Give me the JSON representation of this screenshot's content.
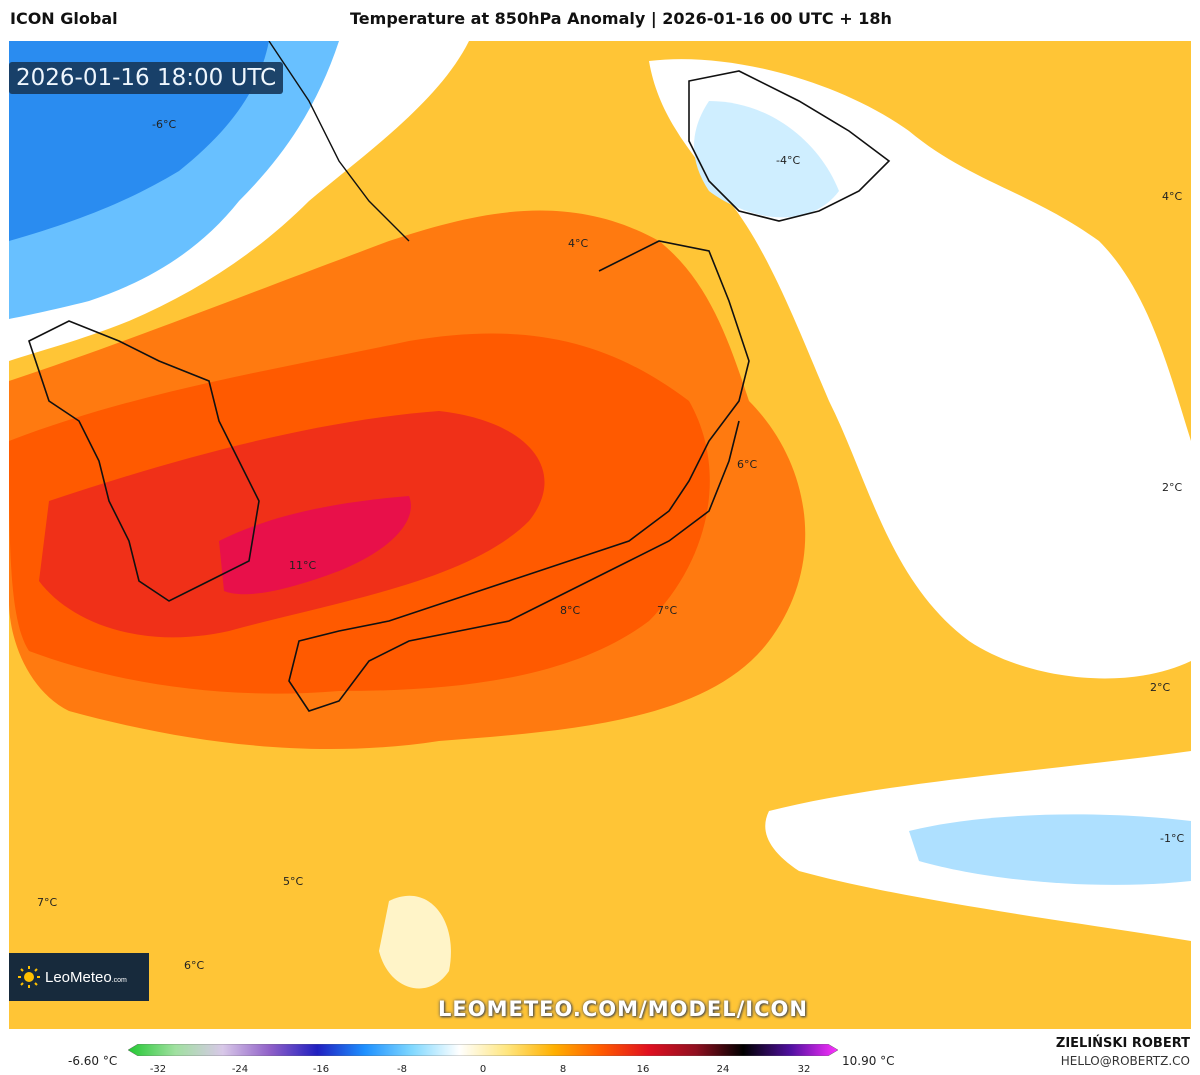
{
  "header": {
    "model": "ICON Global",
    "title": "Temperature at 850hPa Anomaly | 2026-01-16 00 UTC + 18h"
  },
  "map": {
    "timestamp": "2026-01-16 18:00 UTC",
    "watermark": "LEOMETEO.COM/MODEL/ICON",
    "labels": [
      "-6°C",
      "-4°C",
      "4°C",
      "4°C",
      "6°C",
      "2°C",
      "11°C",
      "8°C",
      "7°C",
      "2°C",
      "-1°C",
      "5°C",
      "7°C",
      "6°C"
    ]
  },
  "logo": {
    "name": "LeoMeteo",
    "suffix": ".com"
  },
  "legend": {
    "min_value": "-6.60 °C",
    "max_value": "10.90 °C",
    "ticks": [
      "-32",
      "-24",
      "-16",
      "-8",
      "0",
      "8",
      "16",
      "24",
      "32"
    ],
    "colors": [
      "#22c832",
      "#a0e0a0",
      "#d8c8e8",
      "#9060c8",
      "#2020c0",
      "#1e90ff",
      "#80d8ff",
      "#ffffff",
      "#ffe680",
      "#ffb000",
      "#ff5a00",
      "#e01020",
      "#901020",
      "#000000",
      "#5010a0",
      "#ff30ff"
    ]
  },
  "credits": {
    "name": "ZIELIŃSKI ROBERT",
    "email": "HELLO@ROBERTZ.CO"
  }
}
